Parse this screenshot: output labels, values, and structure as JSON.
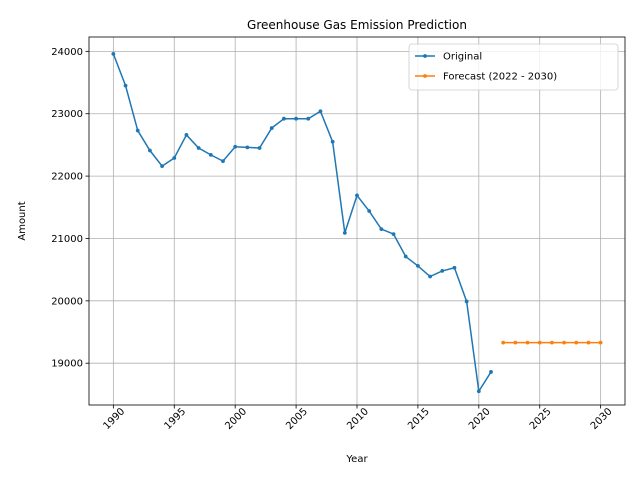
{
  "chart_data": {
    "type": "line",
    "title": "Greenhouse Gas Emission Prediction",
    "xlabel": "Year",
    "ylabel": "Amount",
    "xlim": [
      1988,
      2032
    ],
    "ylim": [
      18330,
      24230
    ],
    "grid": true,
    "legend_position": "top-right",
    "x_ticks": [
      1990,
      1995,
      2000,
      2005,
      2010,
      2015,
      2020,
      2025,
      2030
    ],
    "y_ticks": [
      19000,
      20000,
      21000,
      22000,
      23000,
      24000
    ],
    "series": [
      {
        "name": "Original",
        "color": "#1f77b4",
        "x": [
          1990,
          1991,
          1992,
          1993,
          1994,
          1995,
          1996,
          1997,
          1998,
          1999,
          2000,
          2001,
          2002,
          2003,
          2004,
          2005,
          2006,
          2007,
          2008,
          2009,
          2010,
          2011,
          2012,
          2013,
          2014,
          2015,
          2016,
          2017,
          2018,
          2019,
          2020,
          2021
        ],
        "y": [
          23960,
          23450,
          22730,
          22410,
          22160,
          22290,
          22660,
          22450,
          22340,
          22240,
          22470,
          22460,
          22450,
          22770,
          22920,
          22920,
          22920,
          23040,
          22550,
          21090,
          21690,
          21440,
          21150,
          21070,
          20710,
          20560,
          20390,
          20480,
          20530,
          19990,
          18550,
          18860
        ]
      },
      {
        "name": "Forecast (2022 - 2030)",
        "color": "#ff7f0e",
        "x": [
          2022,
          2023,
          2024,
          2025,
          2026,
          2027,
          2028,
          2029,
          2030
        ],
        "y": [
          19330,
          19330,
          19330,
          19330,
          19330,
          19330,
          19330,
          19330,
          19330
        ]
      }
    ]
  }
}
